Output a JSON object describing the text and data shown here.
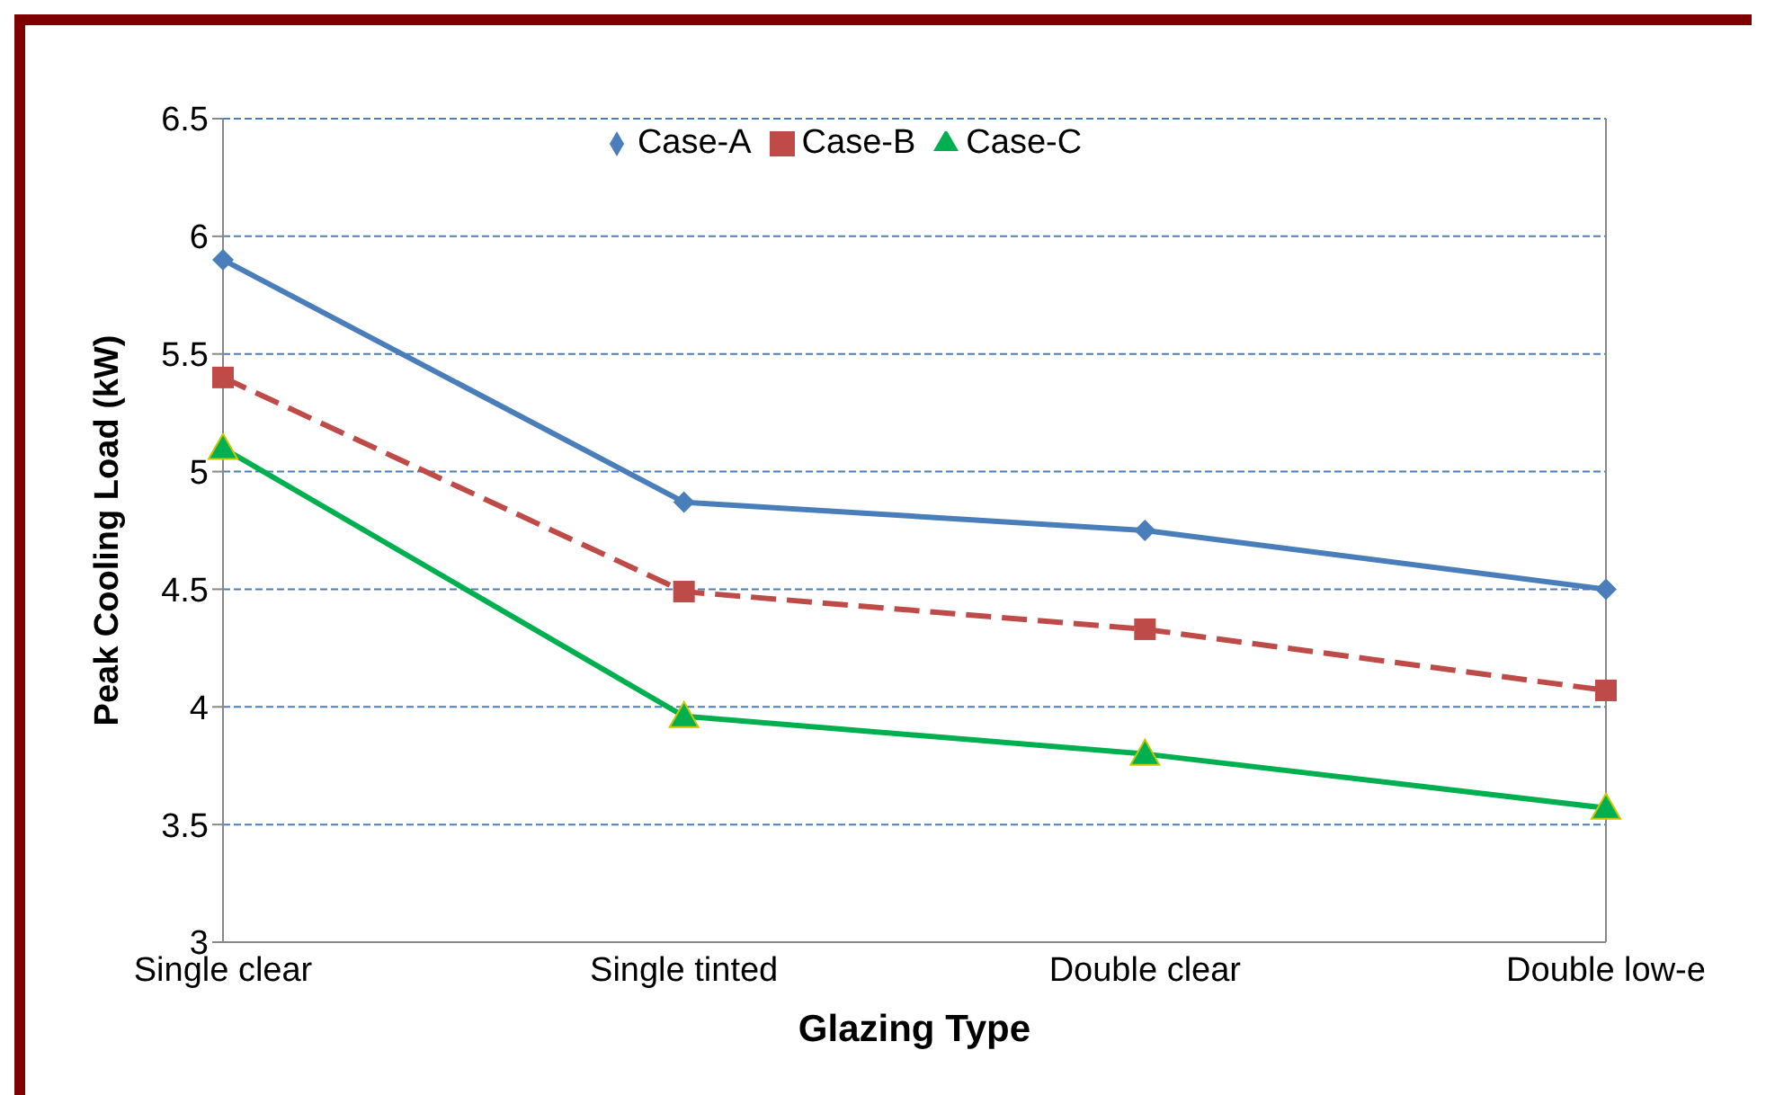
{
  "chart_data": {
    "type": "line",
    "xlabel": "Glazing Type",
    "ylabel": "Peak Cooling Load (kW)",
    "categories": [
      "Single clear",
      "Single tinted",
      "Double clear",
      "Double low-e"
    ],
    "series": [
      {
        "name": "Case-A",
        "color": "#4a7ebb",
        "values": [
          5.9,
          4.87,
          4.75,
          4.5
        ],
        "marker": "diamond",
        "line_style": "solid"
      },
      {
        "name": "Case-B",
        "color": "#be4b48",
        "values": [
          5.4,
          4.49,
          4.33,
          4.07
        ],
        "marker": "square",
        "line_style": "dashed"
      },
      {
        "name": "Case-C",
        "color": "#00b050",
        "values": [
          5.1,
          3.96,
          3.8,
          3.57
        ],
        "marker": "triangle",
        "line_style": "solid"
      }
    ],
    "ylim": [
      3,
      6.5
    ],
    "yticks": [
      3,
      3.5,
      4,
      4.5,
      5,
      5.5,
      6,
      6.5
    ],
    "grid": "y",
    "legend": "top"
  }
}
